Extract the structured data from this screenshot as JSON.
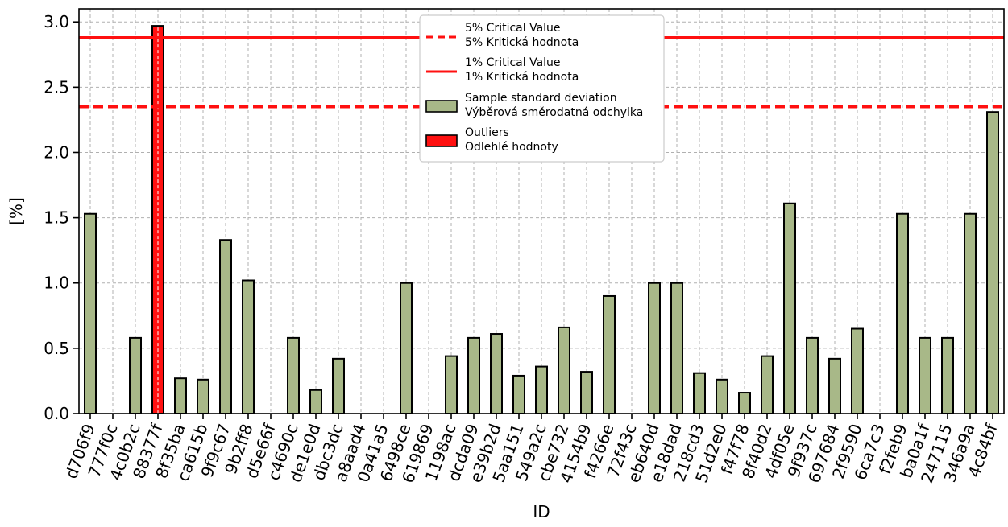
{
  "chart_data": {
    "type": "bar",
    "xlabel": "ID",
    "ylabel": "[%]",
    "ylim": [
      0,
      3.1
    ],
    "yticks": [
      0.0,
      0.5,
      1.0,
      1.5,
      2.0,
      2.5,
      3.0
    ],
    "ytick_labels": [
      "0.0",
      "0.5",
      "1.0",
      "1.5",
      "2.0",
      "2.5",
      "3.0"
    ],
    "grid": true,
    "legend_position": "top-center",
    "colors": {
      "bar": "#a8b888",
      "outlier": "#ff1010",
      "critical": "#ff1010",
      "edge": "#000000",
      "grid": "#b0b0b0"
    },
    "critical_values": [
      {
        "key": "crit5",
        "label_en": "5% Critical Value",
        "label_cz": "5% Kritická hodnota",
        "value": 2.35,
        "style": "dashed"
      },
      {
        "key": "crit1",
        "label_en": "1% Critical Value",
        "label_cz": "1% Kritická hodnota",
        "value": 2.88,
        "style": "solid"
      }
    ],
    "legend": {
      "crit5": [
        "5% Critical Value",
        "5% Kritická hodnota"
      ],
      "crit1": [
        "1% Critical Value",
        "1% Kritická hodnota"
      ],
      "std": [
        "Sample standard deviation",
        "Výběrová směrodatná odchylka"
      ],
      "outliers": [
        "Outliers",
        "Odlehlé hodnoty"
      ]
    },
    "categories": [
      "d706f9",
      "777f0c",
      "4c0b2c",
      "88377f",
      "8f35ba",
      "ca615b",
      "9f9c67",
      "9b2ff8",
      "d5e66f",
      "c4690c",
      "de1e0d",
      "dbc3dc",
      "a8aad4",
      "0a41a5",
      "6498ce",
      "619869",
      "1198ac",
      "dcda09",
      "e39b2d",
      "5aa151",
      "549a2c",
      "cbe732",
      "4154b9",
      "f4266e",
      "72f43c",
      "eb640d",
      "e18dad",
      "218cd3",
      "51d2e0",
      "f47f78",
      "8f40d2",
      "4df05e",
      "9f937c",
      "697684",
      "2f9590",
      "6ca7c3",
      "f2feb9",
      "ba0a1f",
      "247115",
      "346a9a",
      "4c84bf"
    ],
    "values": [
      1.53,
      0.0,
      0.58,
      2.97,
      0.27,
      0.26,
      1.33,
      1.02,
      0.0,
      0.58,
      0.18,
      0.42,
      0.0,
      0.0,
      1.0,
      0.0,
      0.44,
      0.58,
      0.61,
      0.29,
      0.36,
      0.66,
      0.32,
      0.9,
      0.0,
      1.0,
      1.0,
      0.31,
      0.26,
      0.16,
      0.44,
      1.61,
      0.58,
      0.42,
      0.65,
      0.0,
      1.53,
      0.58,
      0.58,
      1.53,
      2.31
    ],
    "outlier_indices": [
      3
    ]
  }
}
